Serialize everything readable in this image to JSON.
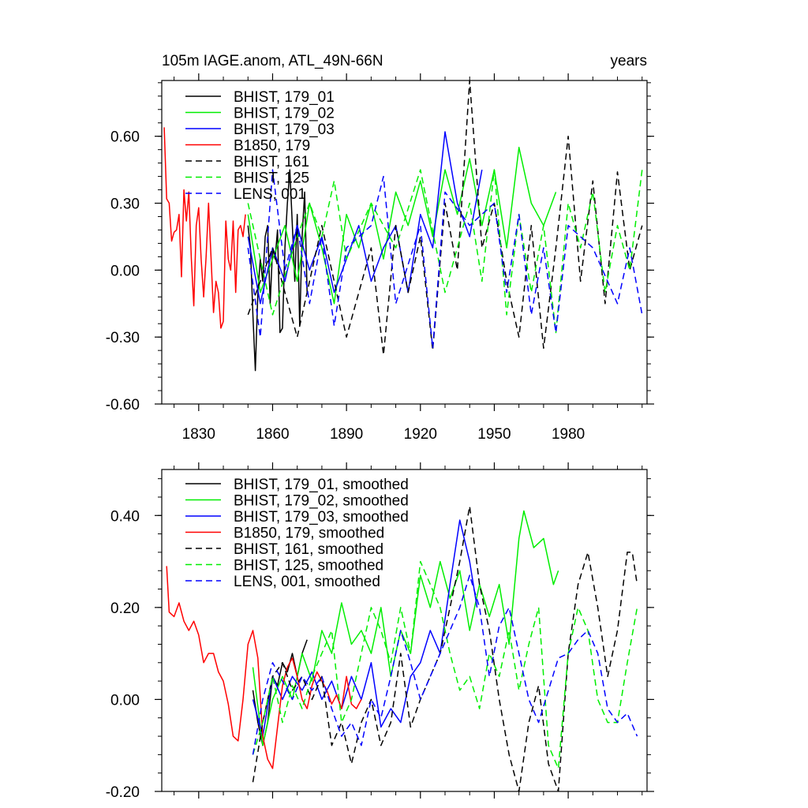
{
  "figure": {
    "title_left": "105m IAGE.anom, ATL_49N-66N",
    "title_right": "years"
  },
  "chart_data": [
    {
      "type": "line",
      "panel": "top",
      "xlim": [
        1815,
        2012
      ],
      "ylim": [
        -0.6,
        0.85
      ],
      "x_ticks": [
        1830,
        1860,
        1890,
        1920,
        1950,
        1980
      ],
      "y_ticks": [
        0.6,
        0.3,
        0.0,
        -0.3,
        -0.6
      ],
      "y_tick_labels": [
        "0.60",
        "0.30",
        "0.00",
        "-0.30",
        "-0.60"
      ],
      "legend_position": "top-left",
      "series": [
        {
          "name": "BHIST, 179_01",
          "color": "#000000",
          "dash": "solid",
          "x": [
            1850,
            1851,
            1852,
            1853,
            1854,
            1855,
            1856,
            1857,
            1858,
            1859,
            1860,
            1861,
            1862,
            1863,
            1864,
            1865,
            1866,
            1867,
            1868,
            1869,
            1870,
            1871,
            1872,
            1873,
            1874
          ],
          "y": [
            0.2,
            0.1,
            -0.2,
            -0.45,
            -0.1,
            0.05,
            -0.05,
            0.15,
            0.2,
            -0.15,
            0.1,
            0.05,
            0.18,
            -0.28,
            -0.26,
            0.1,
            0.3,
            0.45,
            0.2,
            -0.05,
            0.25,
            -0.25,
            0.15,
            0.35,
            -0.1
          ]
        },
        {
          "name": "BHIST, 179_02",
          "color": "#00ee00",
          "dash": "solid",
          "x": [
            1850,
            1855,
            1860,
            1865,
            1870,
            1875,
            1880,
            1885,
            1890,
            1895,
            1900,
            1905,
            1910,
            1915,
            1920,
            1925,
            1930,
            1935,
            1940,
            1945,
            1950,
            1955,
            1960,
            1965,
            1970,
            1975
          ],
          "y": [
            0.25,
            -0.1,
            0.05,
            0.2,
            -0.05,
            0.3,
            0.1,
            -0.15,
            0.25,
            0.1,
            0.3,
            0.05,
            0.35,
            0.2,
            0.4,
            0.15,
            0.45,
            0.25,
            0.5,
            0.2,
            0.45,
            0.1,
            0.55,
            0.3,
            0.2,
            0.35
          ]
        },
        {
          "name": "BHIST, 179_03",
          "color": "#0000ff",
          "dash": "solid",
          "x": [
            1850,
            1855,
            1860,
            1865,
            1870,
            1875,
            1880,
            1885,
            1890,
            1895,
            1900,
            1905,
            1910,
            1915,
            1920,
            1925,
            1930,
            1935,
            1940,
            1945
          ],
          "y": [
            0.15,
            -0.15,
            0.1,
            -0.05,
            0.2,
            0.0,
            0.15,
            -0.1,
            0.05,
            0.2,
            -0.05,
            0.1,
            0.2,
            -0.1,
            0.25,
            0.1,
            0.62,
            0.3,
            0.15,
            0.45
          ]
        },
        {
          "name": "B1850, 179",
          "color": "#ff0000",
          "dash": "solid",
          "x": [
            1816,
            1817,
            1818,
            1819,
            1820,
            1821,
            1822,
            1823,
            1824,
            1825,
            1826,
            1827,
            1828,
            1829,
            1830,
            1831,
            1832,
            1833,
            1834,
            1835,
            1836,
            1837,
            1838,
            1839,
            1840,
            1841,
            1842,
            1843,
            1844,
            1845,
            1846,
            1847,
            1848,
            1849
          ],
          "y": [
            0.64,
            0.32,
            0.3,
            0.13,
            0.17,
            0.18,
            0.25,
            -0.03,
            0.36,
            0.22,
            0.35,
            0.05,
            -0.16,
            0.2,
            0.28,
            0.05,
            -0.12,
            0.06,
            0.3,
            0.06,
            -0.19,
            -0.05,
            -0.1,
            -0.26,
            -0.23,
            0.22,
            0.05,
            0.0,
            0.22,
            -0.1,
            0.18,
            0.2,
            0.15,
            0.25
          ]
        },
        {
          "name": "BHIST, 161",
          "color": "#000000",
          "dash": "dashed",
          "x": [
            1850,
            1860,
            1870,
            1880,
            1890,
            1900,
            1905,
            1910,
            1915,
            1920,
            1925,
            1930,
            1935,
            1940,
            1945,
            1950,
            1955,
            1960,
            1965,
            1970,
            1975,
            1980,
            1985,
            1990,
            1995,
            2000,
            2005,
            2010
          ],
          "y": [
            -0.2,
            0.1,
            -0.3,
            0.2,
            -0.3,
            0.1,
            -0.38,
            0.2,
            -0.1,
            0.15,
            -0.36,
            0.3,
            0.0,
            0.85,
            0.1,
            0.3,
            -0.05,
            -0.3,
            0.2,
            -0.35,
            0.1,
            0.6,
            -0.05,
            0.4,
            -0.15,
            0.44,
            0.0,
            0.2
          ]
        },
        {
          "name": "BHIST, 125",
          "color": "#00ee00",
          "dash": "dashed",
          "x": [
            1850,
            1860,
            1870,
            1875,
            1880,
            1885,
            1890,
            1900,
            1910,
            1920,
            1930,
            1940,
            1945,
            1950,
            1955,
            1960,
            1965,
            1970,
            1975,
            1980,
            1985,
            1990,
            1995,
            2000,
            2005,
            2010
          ],
          "y": [
            0.3,
            -0.2,
            0.15,
            0.3,
            0.15,
            0.4,
            0.05,
            0.3,
            0.1,
            0.45,
            -0.1,
            0.3,
            -0.05,
            0.45,
            -0.2,
            0.25,
            -0.1,
            0.2,
            -0.28,
            0.3,
            0.1,
            0.35,
            -0.1,
            0.2,
            0.0,
            0.45
          ]
        },
        {
          "name": "LENS, 001",
          "color": "#0000ff",
          "dash": "dashed",
          "x": [
            1850,
            1855,
            1860,
            1865,
            1870,
            1875,
            1880,
            1885,
            1890,
            1900,
            1905,
            1910,
            1920,
            1925,
            1930,
            1940,
            1950,
            1955,
            1960,
            1965,
            1970,
            1975,
            1980,
            1990,
            2000,
            2005,
            2010
          ],
          "y": [
            0.1,
            -0.3,
            0.45,
            0.0,
            0.2,
            -0.15,
            0.15,
            -0.25,
            0.1,
            0.2,
            0.42,
            -0.15,
            0.2,
            -0.35,
            0.35,
            0.2,
            0.3,
            -0.1,
            0.25,
            -0.2,
            0.1,
            -0.28,
            0.2,
            0.1,
            -0.15,
            0.1,
            -0.2
          ]
        }
      ]
    },
    {
      "type": "line",
      "panel": "bottom",
      "xlim": [
        1815,
        2012
      ],
      "ylim": [
        -0.2,
        0.5
      ],
      "x_ticks": [
        1830,
        1860,
        1890,
        1920,
        1950,
        1980
      ],
      "y_ticks": [
        0.4,
        0.2,
        0.0,
        -0.2
      ],
      "y_tick_labels": [
        "0.40",
        "0.20",
        "0.00",
        "-0.20"
      ],
      "legend_position": "top-left",
      "series": [
        {
          "name": "BHIST, 179_01, smoothed",
          "color": "#000000",
          "dash": "solid",
          "x": [
            1852,
            1854,
            1856,
            1858,
            1860,
            1862,
            1864,
            1866,
            1868,
            1870,
            1872,
            1874
          ],
          "y": [
            0.02,
            -0.05,
            -0.1,
            -0.05,
            0.05,
            0.03,
            0.08,
            0.06,
            0.1,
            0.05,
            0.1,
            0.13
          ]
        },
        {
          "name": "BHIST, 179_02, smoothed",
          "color": "#00ee00",
          "dash": "solid",
          "x": [
            1852,
            1856,
            1860,
            1864,
            1868,
            1872,
            1876,
            1880,
            1884,
            1888,
            1892,
            1896,
            1900,
            1904,
            1908,
            1912,
            1916,
            1920,
            1924,
            1928,
            1932,
            1936,
            1940,
            1944,
            1948,
            1952,
            1956,
            1960,
            1962,
            1966,
            1970,
            1974,
            1976
          ],
          "y": [
            0.07,
            -0.1,
            0.0,
            0.05,
            0.0,
            0.1,
            0.04,
            0.15,
            0.1,
            0.21,
            0.12,
            0.15,
            0.1,
            0.2,
            0.05,
            0.15,
            0.1,
            0.27,
            0.2,
            0.3,
            0.22,
            0.28,
            0.15,
            0.25,
            0.18,
            0.25,
            0.12,
            0.35,
            0.41,
            0.33,
            0.35,
            0.25,
            0.28
          ]
        },
        {
          "name": "BHIST, 179_03, smoothed",
          "color": "#0000ff",
          "dash": "solid",
          "x": [
            1852,
            1856,
            1860,
            1864,
            1868,
            1872,
            1876,
            1880,
            1884,
            1888,
            1892,
            1896,
            1900,
            1904,
            1908,
            1912,
            1916,
            1920,
            1924,
            1928,
            1932,
            1936,
            1940,
            1943
          ],
          "y": [
            0.0,
            -0.08,
            0.05,
            0.0,
            0.05,
            0.02,
            0.06,
            0.0,
            0.04,
            -0.02,
            0.05,
            0.0,
            0.08,
            -0.06,
            -0.02,
            -0.05,
            0.05,
            0.08,
            0.15,
            0.1,
            0.25,
            0.39,
            0.3,
            0.2
          ]
        },
        {
          "name": "B1850, 179, smoothed",
          "color": "#ff0000",
          "dash": "solid",
          "x": [
            1817,
            1818,
            1820,
            1822,
            1824,
            1826,
            1828,
            1830,
            1832,
            1834,
            1836,
            1838,
            1840,
            1842,
            1844,
            1846,
            1848,
            1850,
            1852,
            1854,
            1856,
            1858,
            1860,
            1862,
            1864,
            1866,
            1868,
            1870,
            1872,
            1874,
            1876,
            1878,
            1880,
            1882,
            1884,
            1886,
            1888,
            1890,
            1892,
            1894,
            1896
          ],
          "y": [
            0.29,
            0.19,
            0.18,
            0.21,
            0.17,
            0.15,
            0.17,
            0.14,
            0.08,
            0.1,
            0.1,
            0.06,
            0.04,
            -0.01,
            -0.08,
            -0.09,
            0.0,
            0.12,
            0.15,
            0.09,
            -0.08,
            -0.13,
            -0.15,
            -0.06,
            0.03,
            0.07,
            0.09,
            0.05,
            0.0,
            -0.02,
            0.03,
            0.06,
            0.04,
            0.02,
            -0.01,
            0.01,
            -0.02,
            0.05,
            -0.01,
            -0.02,
            0.0
          ]
        },
        {
          "name": "BHIST, 161, smoothed",
          "color": "#000000",
          "dash": "dashed",
          "x": [
            1852,
            1856,
            1860,
            1864,
            1868,
            1872,
            1876,
            1880,
            1884,
            1888,
            1892,
            1896,
            1900,
            1904,
            1908,
            1912,
            1916,
            1920,
            1924,
            1928,
            1932,
            1936,
            1940,
            1944,
            1948,
            1952,
            1956,
            1960,
            1964,
            1968,
            1972,
            1976,
            1980,
            1984,
            1988,
            1992,
            1996,
            2000,
            2004,
            2006,
            2008
          ],
          "y": [
            -0.18,
            -0.05,
            0.05,
            0.08,
            0.02,
            0.05,
            0.0,
            0.05,
            -0.1,
            -0.05,
            -0.14,
            -0.05,
            0.0,
            -0.1,
            -0.05,
            0.1,
            -0.06,
            0.0,
            0.05,
            0.1,
            0.2,
            0.3,
            0.42,
            0.25,
            0.15,
            0.0,
            -0.12,
            -0.2,
            -0.05,
            0.03,
            -0.14,
            -0.2,
            0.1,
            0.25,
            0.32,
            0.2,
            0.05,
            0.15,
            0.32,
            0.32,
            0.25
          ]
        },
        {
          "name": "BHIST, 125, smoothed",
          "color": "#00ee00",
          "dash": "dashed",
          "x": [
            1852,
            1856,
            1860,
            1864,
            1868,
            1872,
            1876,
            1880,
            1884,
            1888,
            1892,
            1896,
            1900,
            1904,
            1908,
            1912,
            1916,
            1920,
            1924,
            1928,
            1932,
            1936,
            1940,
            1944,
            1948,
            1952,
            1956,
            1960,
            1964,
            1968,
            1972,
            1976,
            1980,
            1984,
            1988,
            1992,
            1996,
            2000,
            2004,
            2008
          ],
          "y": [
            -0.12,
            -0.05,
            0.05,
            -0.05,
            0.03,
            -0.02,
            0.05,
            0.1,
            0.15,
            -0.05,
            0.0,
            0.1,
            0.2,
            0.15,
            0.08,
            0.2,
            0.1,
            0.3,
            0.25,
            0.2,
            0.1,
            0.02,
            0.05,
            -0.02,
            0.1,
            0.05,
            0.15,
            0.02,
            0.12,
            0.2,
            -0.1,
            -0.15,
            0.1,
            0.2,
            0.15,
            0.0,
            -0.05,
            -0.05,
            0.08,
            0.2
          ]
        },
        {
          "name": "LENS, 001, smoothed",
          "color": "#0000ff",
          "dash": "dashed",
          "x": [
            1852,
            1856,
            1860,
            1864,
            1868,
            1872,
            1876,
            1880,
            1884,
            1888,
            1892,
            1896,
            1900,
            1904,
            1908,
            1912,
            1916,
            1920,
            1924,
            1928,
            1932,
            1936,
            1940,
            1944,
            1948,
            1952,
            1956,
            1960,
            1964,
            1968,
            1972,
            1976,
            1980,
            1984,
            1988,
            1992,
            1996,
            2000,
            2004,
            2008
          ],
          "y": [
            -0.12,
            0.0,
            0.08,
            0.04,
            0.0,
            0.05,
            0.02,
            0.05,
            -0.02,
            -0.08,
            -0.05,
            -0.1,
            0.0,
            -0.04,
            0.05,
            0.15,
            0.08,
            0.0,
            0.05,
            0.1,
            0.15,
            0.2,
            0.27,
            0.2,
            0.05,
            0.16,
            0.2,
            0.1,
            0.0,
            -0.05,
            0.02,
            0.09,
            0.1,
            0.13,
            0.15,
            0.1,
            -0.02,
            -0.05,
            -0.03,
            -0.08
          ]
        }
      ]
    }
  ]
}
